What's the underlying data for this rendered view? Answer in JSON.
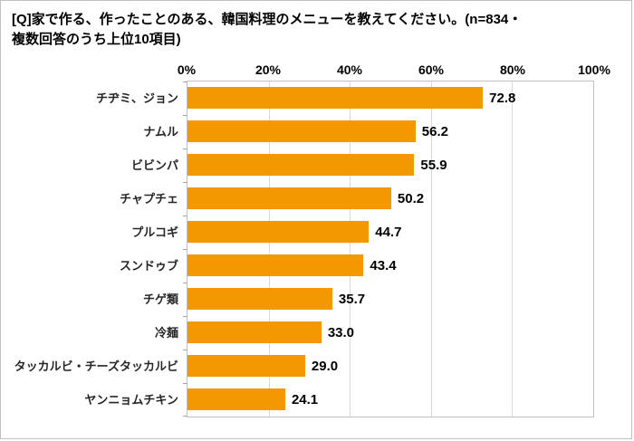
{
  "title": {
    "line1": "[Q]家で作る、作ったことのある、韓国料理のメニューを教えてください。(n=834・",
    "line2": "複数回答のうち上位10項目)"
  },
  "chart_data": {
    "type": "bar",
    "orientation": "horizontal",
    "title": "[Q]家で作る、作ったことのある、韓国料理のメニューを教えてください。(n=834・複数回答のうち上位10項目)",
    "categories": [
      "チヂミ、ジョン",
      "ナムル",
      "ビビンパ",
      "チャプチェ",
      "プルコギ",
      "スンドゥブ",
      "チゲ類",
      "冷麺",
      "タッカルビ・チーズタッカルビ",
      "ヤンニョムチキン"
    ],
    "values": [
      72.8,
      56.2,
      55.9,
      50.2,
      44.7,
      43.4,
      35.7,
      33.0,
      29.0,
      24.1
    ],
    "xlabel": "",
    "ylabel": "",
    "xlim": [
      0,
      100
    ],
    "x_ticks": [
      "0%",
      "20%",
      "40%",
      "60%",
      "80%",
      "100%"
    ],
    "grid": "vertical",
    "legend": "none",
    "bar_color": "#f39800",
    "gridline_color": "#d9d9d9"
  }
}
